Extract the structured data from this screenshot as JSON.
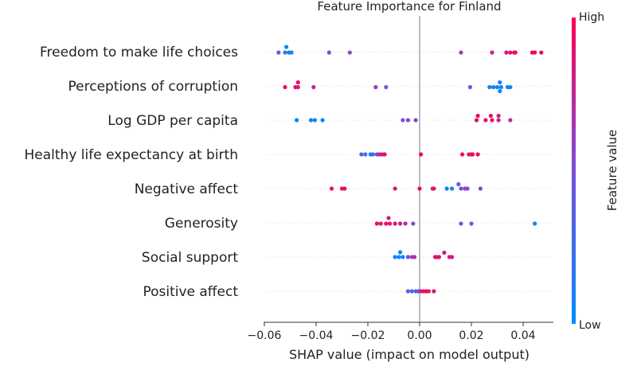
{
  "chart_data": {
    "type": "scatter",
    "title": "Feature Importance for Finland",
    "xlabel": "SHAP value (impact on model output)",
    "xlim": [
      -0.062,
      0.052
    ],
    "xticks": [
      -0.06,
      -0.04,
      -0.02,
      0.0,
      0.02,
      0.04
    ],
    "xtick_labels": [
      "−0.06",
      "−0.04",
      "−0.02",
      "0.00",
      "0.02",
      "0.04"
    ],
    "colorbar": {
      "label": "Feature value",
      "high_label": "High",
      "low_label": "Low",
      "low_color": "#008bfb",
      "high_color": "#ff0052"
    },
    "features": [
      {
        "name": "Freedom to make life choices",
        "points": [
          [
            -0.0515,
            -0.6,
            0.05
          ],
          [
            -0.0545,
            0.1,
            0.45
          ],
          [
            -0.052,
            0.1,
            0.1
          ],
          [
            -0.0505,
            0.1,
            0.15
          ],
          [
            -0.0495,
            0.1,
            0.05
          ],
          [
            -0.035,
            0.1,
            0.5
          ],
          [
            -0.027,
            0.1,
            0.55
          ],
          [
            0.016,
            0.1,
            0.6
          ],
          [
            0.028,
            0.1,
            0.8
          ],
          [
            0.0335,
            0.1,
            0.85
          ],
          [
            0.035,
            0.1,
            0.9
          ],
          [
            0.0365,
            0.1,
            0.95
          ],
          [
            0.037,
            0.1,
            0.9
          ],
          [
            0.0435,
            0.1,
            0.95
          ],
          [
            0.0445,
            0.1,
            0.95
          ],
          [
            0.047,
            0.1,
            0.95
          ]
        ]
      },
      {
        "name": "Perceptions of corruption",
        "points": [
          [
            -0.047,
            -0.45,
            0.95
          ],
          [
            -0.052,
            0.15,
            0.95
          ],
          [
            -0.048,
            0.15,
            0.9
          ],
          [
            -0.047,
            0.15,
            0.85
          ],
          [
            -0.041,
            0.15,
            0.75
          ],
          [
            -0.017,
            0.15,
            0.6
          ],
          [
            -0.013,
            0.15,
            0.5
          ],
          [
            0.0195,
            0.15,
            0.4
          ],
          [
            0.027,
            0.15,
            0.15
          ],
          [
            0.0285,
            0.15,
            0.05
          ],
          [
            0.03,
            0.15,
            0.1
          ],
          [
            0.0315,
            0.15,
            0.05
          ],
          [
            0.034,
            0.15,
            0.1
          ],
          [
            0.035,
            0.15,
            0.05
          ],
          [
            0.031,
            -0.45,
            0.1
          ],
          [
            0.031,
            0.65,
            0.05
          ]
        ]
      },
      {
        "name": "Log GDP per capita",
        "points": [
          [
            -0.0475,
            0.0,
            0.05
          ],
          [
            -0.042,
            0.0,
            0.1
          ],
          [
            -0.0405,
            0.0,
            0.05
          ],
          [
            -0.0375,
            0.0,
            0.05
          ],
          [
            -0.0065,
            0.0,
            0.5
          ],
          [
            -0.0045,
            0.0,
            0.55
          ],
          [
            -0.0015,
            0.0,
            0.6
          ],
          [
            0.0225,
            -0.55,
            0.95
          ],
          [
            0.0275,
            -0.55,
            0.9
          ],
          [
            0.0305,
            -0.55,
            0.85
          ],
          [
            0.022,
            0.0,
            0.95
          ],
          [
            0.0255,
            0.0,
            0.95
          ],
          [
            0.028,
            0.0,
            0.9
          ],
          [
            0.0305,
            0.0,
            0.8
          ],
          [
            0.035,
            0.0,
            0.7
          ]
        ]
      },
      {
        "name": "Healthy life expectancy at birth",
        "points": [
          [
            -0.0225,
            0.0,
            0.4
          ],
          [
            -0.021,
            0.0,
            0.2
          ],
          [
            -0.019,
            0.0,
            0.15
          ],
          [
            -0.018,
            0.0,
            0.3
          ],
          [
            -0.0165,
            0.0,
            0.5
          ],
          [
            -0.0155,
            0.0,
            0.8
          ],
          [
            -0.0145,
            0.0,
            0.85
          ],
          [
            -0.0135,
            0.0,
            0.9
          ],
          [
            0.0005,
            0.0,
            0.95
          ],
          [
            0.0165,
            0.0,
            0.95
          ],
          [
            0.019,
            0.0,
            0.9
          ],
          [
            0.0205,
            0.0,
            0.95
          ],
          [
            0.0225,
            0.0,
            0.95
          ],
          [
            0.02,
            0.0,
            0.95
          ]
        ]
      },
      {
        "name": "Negative affect",
        "points": [
          [
            -0.034,
            0.0,
            0.95
          ],
          [
            -0.03,
            0.0,
            0.95
          ],
          [
            -0.029,
            0.0,
            0.9
          ],
          [
            -0.0095,
            0.0,
            0.85
          ],
          [
            0.0,
            0.0,
            0.95
          ],
          [
            0.005,
            0.0,
            0.85
          ],
          [
            0.0055,
            0.0,
            0.9
          ],
          [
            0.0105,
            0.0,
            0.1
          ],
          [
            0.0125,
            0.0,
            0.05
          ],
          [
            0.016,
            0.0,
            0.4
          ],
          [
            0.0175,
            0.0,
            0.6
          ],
          [
            0.0185,
            0.0,
            0.5
          ],
          [
            0.0235,
            0.0,
            0.55
          ],
          [
            0.015,
            -0.55,
            0.45
          ]
        ]
      },
      {
        "name": "Generosity",
        "points": [
          [
            -0.012,
            -0.6,
            0.8
          ],
          [
            -0.0165,
            0.1,
            0.95
          ],
          [
            -0.015,
            0.1,
            0.9
          ],
          [
            -0.013,
            0.1,
            0.9
          ],
          [
            -0.0115,
            0.1,
            0.85
          ],
          [
            -0.0095,
            0.1,
            0.85
          ],
          [
            -0.0075,
            0.1,
            0.8
          ],
          [
            -0.0055,
            0.1,
            0.7
          ],
          [
            -0.0025,
            0.1,
            0.5
          ],
          [
            0.016,
            0.1,
            0.45
          ],
          [
            0.02,
            0.1,
            0.45
          ],
          [
            0.0445,
            0.1,
            0.05
          ]
        ]
      },
      {
        "name": "Social support",
        "points": [
          [
            -0.0075,
            -0.6,
            0.05
          ],
          [
            -0.0095,
            0.0,
            0.1
          ],
          [
            -0.008,
            0.0,
            0.05
          ],
          [
            -0.0065,
            0.0,
            0.1
          ],
          [
            -0.0045,
            0.0,
            0.5
          ],
          [
            -0.003,
            0.0,
            0.55
          ],
          [
            -0.002,
            0.0,
            0.7
          ],
          [
            0.0065,
            0.0,
            0.95
          ],
          [
            0.0075,
            0.0,
            0.9
          ],
          [
            0.0095,
            -0.55,
            0.85
          ],
          [
            0.0115,
            0.0,
            0.8
          ],
          [
            0.0125,
            0.0,
            0.85
          ],
          [
            0.006,
            0.0,
            0.9
          ]
        ]
      },
      {
        "name": "Positive affect",
        "points": [
          [
            -0.0045,
            0.0,
            0.45
          ],
          [
            -0.003,
            0.0,
            0.3
          ],
          [
            -0.0015,
            0.0,
            0.25
          ],
          [
            -0.0005,
            0.0,
            0.5
          ],
          [
            0.0005,
            0.0,
            0.85
          ],
          [
            0.0015,
            0.0,
            0.9
          ],
          [
            0.0025,
            0.0,
            0.95
          ],
          [
            0.0035,
            0.0,
            0.9
          ],
          [
            0.0055,
            0.0,
            0.85
          ]
        ]
      }
    ]
  }
}
